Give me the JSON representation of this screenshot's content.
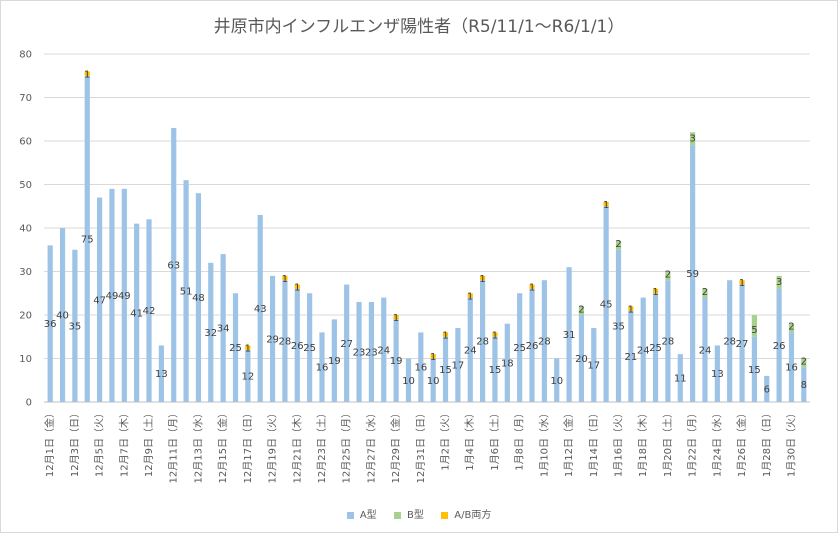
{
  "chart_data": {
    "type": "bar",
    "stacked": true,
    "title": "井原市内インフルエンザ陽性者（R5/11/1～R6/1/1）",
    "ylim": [
      0,
      80
    ],
    "yticks": [
      0,
      10,
      20,
      30,
      40,
      50,
      60,
      70,
      80
    ],
    "grid": true,
    "legend_position": "bottom",
    "categories": [
      "12月1日（金）",
      "12月2日（土）",
      "12月3日（日）",
      "12月4日（月）",
      "12月5日（火）",
      "12月6日（水）",
      "12月7日（木）",
      "12月8日（金）",
      "12月9日（土）",
      "12月10日（日）",
      "12月11日（月）",
      "12月12日（火）",
      "12月13日（水）",
      "12月14日（木）",
      "12月15日（金）",
      "12月16日（土）",
      "12月17日（日）",
      "12月18日（月）",
      "12月19日（火）",
      "12月20日（水）",
      "12月21日（木）",
      "12月22日（金）",
      "12月23日（土）",
      "12月24日（日）",
      "12月25日（月）",
      "12月26日（火）",
      "12月27日（水）",
      "12月28日（木）",
      "12月29日（金）",
      "12月30日（土）",
      "12月31日（日）",
      "1月1日（月）",
      "1月2日（火）",
      "1月3日（水）",
      "1月4日（木）",
      "1月5日（金）",
      "1月6日（土）",
      "1月7日（日）",
      "1月8日（月）",
      "1月9日（火）",
      "1月10日（水）",
      "1月11日（木）",
      "1月12日（金）",
      "1月13日（土）",
      "1月14日（日）",
      "1月15日（月）",
      "1月16日（火）",
      "1月17日（水）",
      "1月18日（木）",
      "1月19日（金）",
      "1月20日（土）",
      "1月21日（日）",
      "1月22日（月）",
      "1月23日（火）",
      "1月24日（水）",
      "1月25日（木）",
      "1月26日（金）",
      "1月27日（土）",
      "1月28日（日）",
      "1月29日（月）",
      "1月30日（火）",
      "1月31日（水）"
    ],
    "series": [
      {
        "name": "A型",
        "color": "#9dc3e6",
        "values": [
          36,
          40,
          35,
          75,
          47,
          49,
          49,
          41,
          42,
          13,
          63,
          51,
          48,
          32,
          34,
          25,
          12,
          43,
          29,
          28,
          26,
          25,
          16,
          19,
          27,
          23,
          23,
          24,
          19,
          10,
          16,
          10,
          15,
          17,
          24,
          28,
          15,
          18,
          25,
          26,
          28,
          10,
          31,
          20,
          17,
          45,
          35,
          21,
          24,
          25,
          28,
          11,
          59,
          24,
          13,
          28,
          27,
          15,
          6,
          26,
          16,
          8
        ]
      },
      {
        "name": "B型",
        "color": "#a9d18e",
        "values": [
          null,
          null,
          null,
          null,
          null,
          null,
          null,
          null,
          null,
          null,
          null,
          null,
          null,
          null,
          null,
          null,
          null,
          null,
          null,
          null,
          null,
          null,
          null,
          null,
          null,
          null,
          null,
          null,
          null,
          null,
          null,
          null,
          null,
          null,
          null,
          null,
          null,
          null,
          null,
          null,
          null,
          null,
          null,
          2,
          null,
          null,
          2,
          null,
          null,
          null,
          2,
          null,
          3,
          2,
          null,
          null,
          null,
          5,
          null,
          3,
          2,
          2
        ]
      },
      {
        "name": "A/B両方",
        "color": "#ffc000",
        "values": [
          null,
          null,
          null,
          1,
          null,
          null,
          null,
          null,
          null,
          null,
          null,
          null,
          null,
          null,
          null,
          null,
          1,
          null,
          null,
          1,
          1,
          null,
          null,
          null,
          null,
          null,
          null,
          null,
          1,
          null,
          null,
          1,
          1,
          null,
          1,
          1,
          1,
          null,
          null,
          1,
          null,
          null,
          null,
          null,
          null,
          1,
          null,
          1,
          null,
          1,
          null,
          null,
          null,
          null,
          null,
          null,
          1,
          null,
          null,
          null,
          null,
          null
        ]
      }
    ]
  }
}
